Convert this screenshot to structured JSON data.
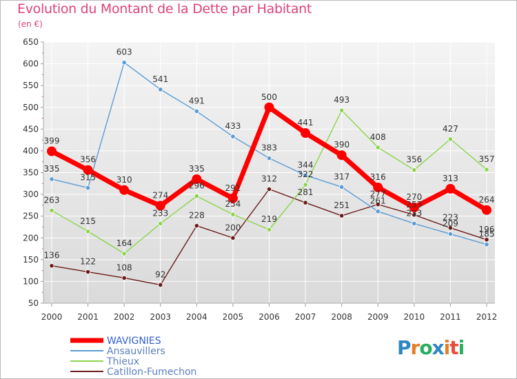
{
  "title": "Evolution du Montant de la Dette par Habitant",
  "unit": "(en €)",
  "logo": {
    "letters": [
      "P",
      "r",
      "o",
      "x",
      "i",
      "t",
      "i"
    ],
    "colors": [
      "#2e86c1",
      "#e67e22",
      "#27ae60",
      "#2e86c1",
      "#e67e22",
      "#e74c3c",
      "#27ae60"
    ]
  },
  "chart_data": {
    "type": "line",
    "title": "Evolution du Montant de la Dette par Habitant",
    "ylabel": "(en €)",
    "xlabel": "",
    "x": [
      "2000",
      "2001",
      "2002",
      "2003",
      "2004",
      "2005",
      "2006",
      "2007",
      "2008",
      "2009",
      "2010",
      "2011",
      "2012"
    ],
    "ylim": [
      50,
      650
    ],
    "yticks": [
      "50",
      "100",
      "150",
      "200",
      "250",
      "300",
      "350",
      "400",
      "450",
      "500",
      "550",
      "600",
      "650"
    ],
    "grid": true,
    "legend_position": "bottom",
    "series": [
      {
        "name": "WAVIGNIES",
        "color": "#ff0000",
        "values": [
          399,
          356,
          310,
          274,
          335,
          291,
          500,
          441,
          390,
          316,
          270,
          313,
          264
        ],
        "labels": [
          "399",
          "356",
          "310",
          "274",
          "335",
          "291",
          "500",
          "441",
          "390",
          "316",
          "270",
          "313",
          "264"
        ]
      },
      {
        "name": "Ansauvillers",
        "color": "#5b9bd5",
        "values": [
          335,
          315,
          603,
          541,
          491,
          433,
          383,
          344,
          317,
          261,
          233,
          209,
          185
        ],
        "labels": [
          "335",
          "315",
          "603",
          "541",
          "491",
          "433",
          "383",
          "344",
          "317",
          "261",
          "233",
          "209",
          "185"
        ]
      },
      {
        "name": "Thieux",
        "color": "#8cd44a",
        "values": [
          263,
          215,
          164,
          233,
          296,
          254,
          219,
          322,
          493,
          408,
          356,
          427,
          357
        ],
        "labels": [
          "263",
          "215",
          "164",
          "233",
          "296",
          "254",
          "219",
          "322",
          "493",
          "408",
          "356",
          "427",
          "357"
        ]
      },
      {
        "name": "Catillon-Fumechon",
        "color": "#6b1a1a",
        "values": [
          136,
          122,
          108,
          92,
          228,
          200,
          312,
          281,
          251,
          277,
          253,
          223,
          196
        ],
        "labels": [
          "136",
          "122",
          "108",
          "92",
          "228",
          "200",
          "312",
          "281",
          "251",
          "277",
          "253",
          "223",
          "196"
        ]
      }
    ]
  }
}
